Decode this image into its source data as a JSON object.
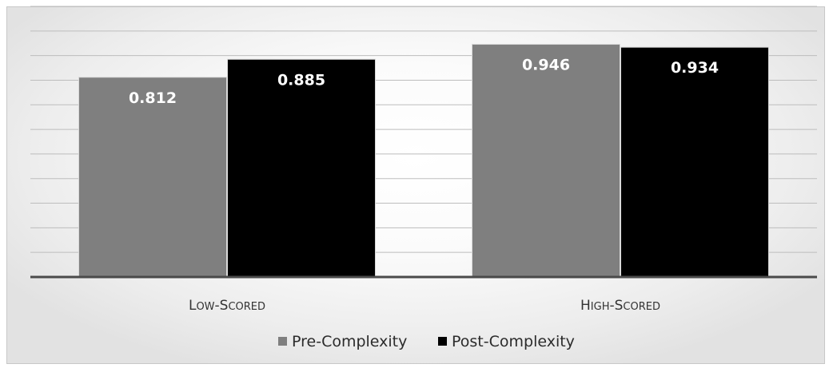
{
  "chart_data": {
    "type": "bar",
    "categories": [
      "Low-Scored",
      "High-Scored"
    ],
    "series": [
      {
        "name": "Pre-Complexity",
        "values": [
          0.812,
          0.946
        ],
        "color": "#7f7f7f"
      },
      {
        "name": "Post-Complexity",
        "values": [
          0.885,
          0.934
        ],
        "color": "#000000"
      }
    ],
    "value_labels": [
      [
        "0.812",
        "0.885"
      ],
      [
        "0.946",
        "0.934"
      ]
    ],
    "title": "",
    "xlabel": "",
    "ylabel": "",
    "ylim": [
      0,
      1.1
    ],
    "gridlines": 11,
    "grid": true,
    "legend": "bottom-center",
    "data_labels": "inside-top"
  }
}
